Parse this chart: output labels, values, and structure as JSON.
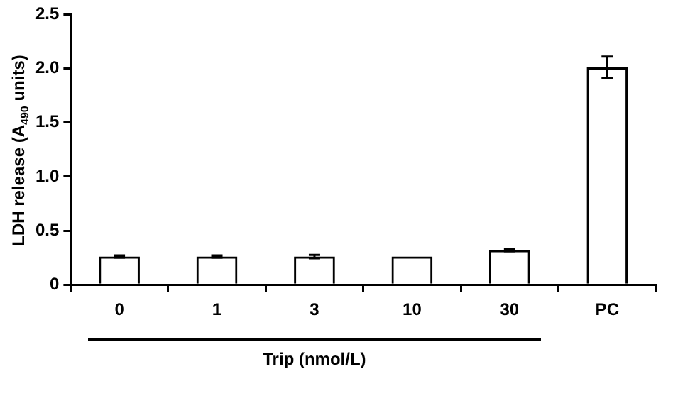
{
  "chart_data": {
    "type": "bar",
    "categories": [
      "0",
      "1",
      "3",
      "10",
      "30",
      "PC"
    ],
    "values": [
      0.26,
      0.26,
      0.26,
      0.26,
      0.32,
      2.01
    ],
    "errors": [
      0.01,
      0.01,
      0.015,
      null,
      0.01,
      0.1
    ],
    "color": "#000000",
    "ylabel": "LDH release (A$_{490}$ units)",
    "xlabel": "Trip (nmol/L)",
    "ylim": [
      0,
      2.5
    ],
    "yticks": [
      {
        "value": 0,
        "label": "0"
      },
      {
        "value": 0.5,
        "label": "0.5"
      },
      {
        "value": 1,
        "label": "1.0"
      },
      {
        "value": 1.5,
        "label": "1.5"
      },
      {
        "value": 2,
        "label": "2.0"
      },
      {
        "value": 2.5,
        "label": "2.5"
      }
    ],
    "grid": false,
    "legend": false
  }
}
